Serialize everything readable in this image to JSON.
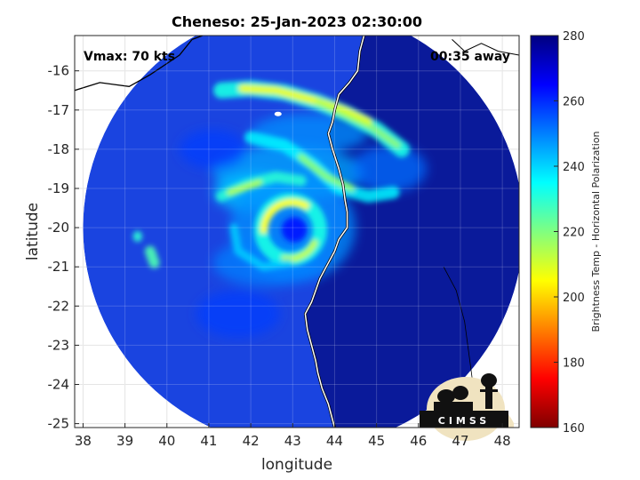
{
  "chart_data": {
    "type": "heatmap",
    "title": "Cheneso: 25-Jan-2023 02:30:00",
    "xlabel": "longitude",
    "ylabel": "latitude",
    "xlim": [
      37.8,
      48.4
    ],
    "ylim": [
      -25.1,
      -15.1
    ],
    "x_ticks": [
      38,
      39,
      40,
      41,
      42,
      43,
      44,
      45,
      46,
      47,
      48
    ],
    "y_ticks": [
      -16,
      -17,
      -18,
      -19,
      -20,
      -21,
      -22,
      -23,
      -24,
      -25
    ],
    "grid": true,
    "annotations": {
      "vmax": "Vmax: 70 kts",
      "time_away": "00:35 away"
    },
    "colorbar": {
      "label": "Brightness Temp - Horizontal Polarization",
      "range": [
        160,
        280
      ],
      "ticks": [
        280,
        260,
        240,
        220,
        200,
        180,
        160
      ],
      "colormap": "jet"
    },
    "swath": {
      "center": [
        43.25,
        -20.0
      ],
      "radius_deg": 5.25
    },
    "storm_center": [
      42.95,
      -20.05
    ],
    "logo": "CIMSS"
  },
  "colors": {
    "background_tb": "#1a44e0",
    "land_tb": "#0a1a9a",
    "coast": "#ffffff",
    "grid": "#d9d9d9"
  }
}
